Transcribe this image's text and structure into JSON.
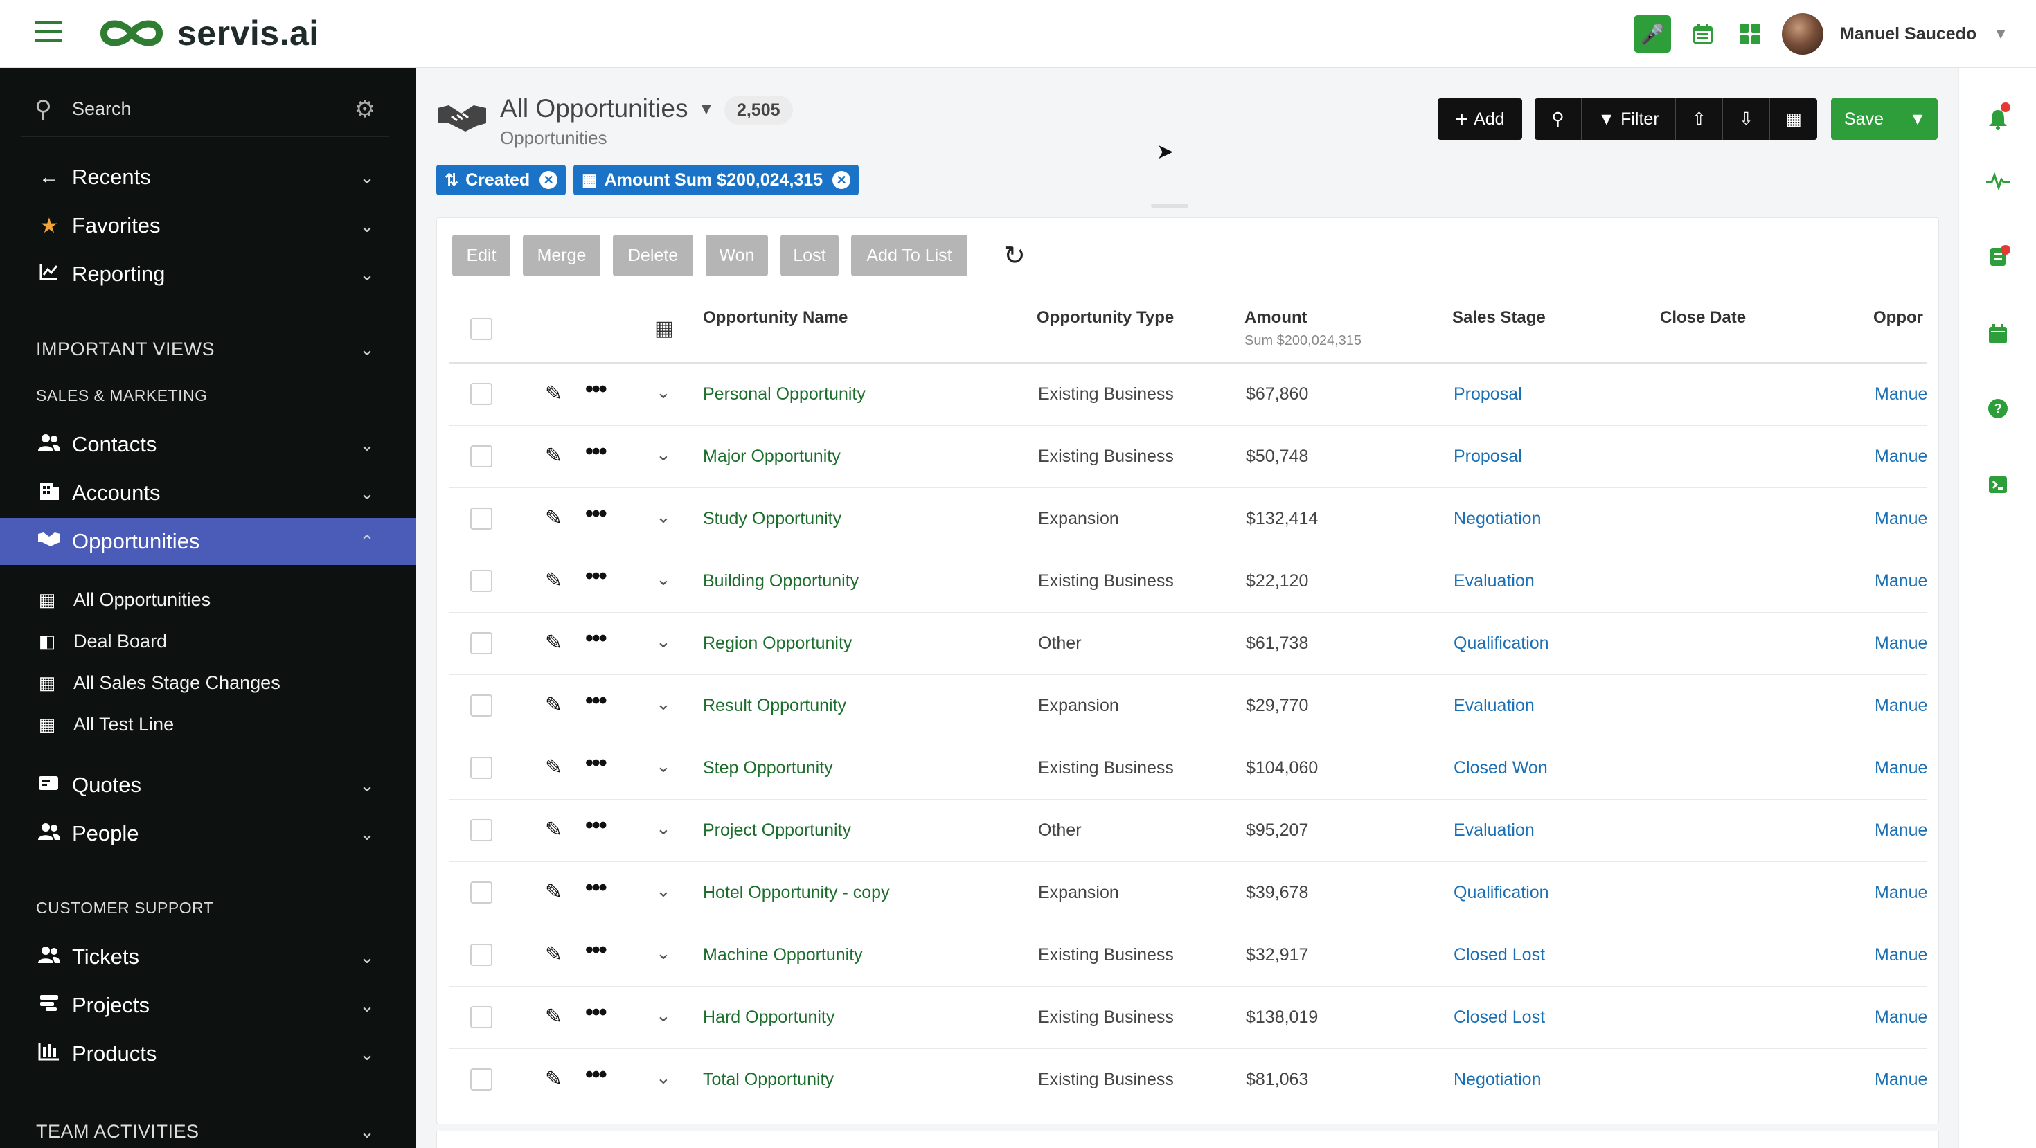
{
  "app": {
    "brand": "servis.ai",
    "user_name": "Manuel Saucedo"
  },
  "colors": {
    "brand_green": "#2e9e3a",
    "chip_blue": "#1a73c7",
    "active_nav": "#4a5bb8",
    "sidebar_bg": "#0d1110"
  },
  "sidebar": {
    "search_placeholder": "Search",
    "top_items": [
      {
        "label": "Recents",
        "icon": "arrow-left-icon"
      },
      {
        "label": "Favorites",
        "icon": "star-icon"
      },
      {
        "label": "Reporting",
        "icon": "chart-line-icon"
      }
    ],
    "important_views": "IMPORTANT VIEWS",
    "sales_marketing": "SALES & MARKETING",
    "sales_items": [
      {
        "label": "Contacts"
      },
      {
        "label": "Accounts"
      },
      {
        "label": "Opportunities",
        "active": true
      }
    ],
    "opportunity_views": [
      {
        "label": "All Opportunities"
      },
      {
        "label": "Deal Board"
      },
      {
        "label": "All Sales Stage Changes"
      },
      {
        "label": "All Test Line"
      }
    ],
    "more_items": [
      {
        "label": "Quotes"
      },
      {
        "label": "People"
      }
    ],
    "customer_support": "CUSTOMER SUPPORT",
    "support_items": [
      {
        "label": "Tickets"
      },
      {
        "label": "Projects"
      },
      {
        "label": "Products"
      }
    ],
    "team_activities": "TEAM ACTIVITIES"
  },
  "header": {
    "title": "All Opportunities",
    "count": "2,505",
    "subtitle": "Opportunities",
    "chips": [
      {
        "label": "Created"
      },
      {
        "label": "Amount Sum $200,024,315"
      }
    ]
  },
  "toolbar": {
    "add_label": "Add",
    "filter_label": "Filter",
    "save_label": "Save"
  },
  "actions": [
    "Edit",
    "Merge",
    "Delete",
    "Won",
    "Lost",
    "Add To List"
  ],
  "table": {
    "columns": {
      "name": "Opportunity Name",
      "type": "Opportunity Type",
      "amount": "Amount",
      "amount_sum": "Sum $200,024,315",
      "stage": "Sales Stage",
      "close": "Close Date",
      "owner": "Oppor"
    },
    "rows": [
      {
        "name": "Personal Opportunity",
        "type": "Existing Business",
        "amount": "$67,860",
        "stage": "Proposal",
        "owner": "Manue"
      },
      {
        "name": "Major Opportunity",
        "type": "Existing Business",
        "amount": "$50,748",
        "stage": "Proposal",
        "owner": "Manue"
      },
      {
        "name": "Study Opportunity",
        "type": "Expansion",
        "amount": "$132,414",
        "stage": "Negotiation",
        "owner": "Manue"
      },
      {
        "name": "Building Opportunity",
        "type": "Existing Business",
        "amount": "$22,120",
        "stage": "Evaluation",
        "owner": "Manue"
      },
      {
        "name": "Region Opportunity",
        "type": "Other",
        "amount": "$61,738",
        "stage": "Qualification",
        "owner": "Manue"
      },
      {
        "name": "Result Opportunity",
        "type": "Expansion",
        "amount": "$29,770",
        "stage": "Evaluation",
        "owner": "Manue"
      },
      {
        "name": "Step Opportunity",
        "type": "Existing Business",
        "amount": "$104,060",
        "stage": "Closed Won",
        "owner": "Manue"
      },
      {
        "name": "Project Opportunity",
        "type": "Other",
        "amount": "$95,207",
        "stage": "Evaluation",
        "owner": "Manue"
      },
      {
        "name": "Hotel Opportunity - copy",
        "type": "Expansion",
        "amount": "$39,678",
        "stage": "Qualification",
        "owner": "Manue"
      },
      {
        "name": "Machine Opportunity",
        "type": "Existing Business",
        "amount": "$32,917",
        "stage": "Closed Lost",
        "owner": "Manue"
      },
      {
        "name": "Hard Opportunity",
        "type": "Existing Business",
        "amount": "$138,019",
        "stage": "Closed Lost",
        "owner": "Manue"
      },
      {
        "name": "Total Opportunity",
        "type": "Existing Business",
        "amount": "$81,063",
        "stage": "Negotiation",
        "owner": "Manue"
      }
    ]
  }
}
